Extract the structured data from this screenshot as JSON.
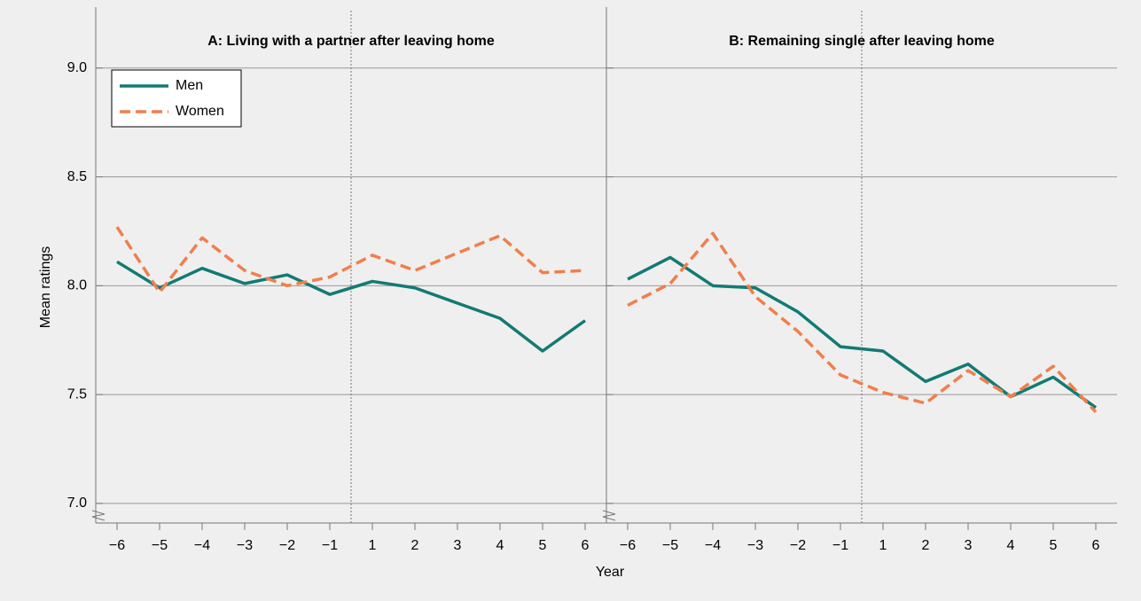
{
  "chart_data": [
    {
      "type": "line",
      "title": "A: Living with a partner after leaving home",
      "ylabel": "Mean ratings",
      "xlabel": "Year",
      "categories": [
        "−6",
        "−5",
        "−4",
        "−3",
        "−2",
        "−1",
        "1",
        "2",
        "3",
        "4",
        "5",
        "6"
      ],
      "series": [
        {
          "name": "Men",
          "color": "#127a73",
          "dash": false,
          "values": [
            8.11,
            7.99,
            8.08,
            8.01,
            8.05,
            7.96,
            8.02,
            7.99,
            7.92,
            7.85,
            7.7,
            7.84
          ]
        },
        {
          "name": "Women",
          "color": "#f07f4b",
          "dash": true,
          "values": [
            8.27,
            7.97,
            8.22,
            8.07,
            8.0,
            8.04,
            8.14,
            8.07,
            8.15,
            8.23,
            8.06,
            8.07
          ]
        }
      ],
      "ylim": [
        6.91,
        9.28
      ],
      "yticks": [
        {
          "value": 7,
          "label": "7.0"
        },
        7.5,
        {
          "value": 8,
          "label": "8.0"
        },
        8.5,
        {
          "value": 9,
          "label": "9.0"
        }
      ],
      "grid": true,
      "legend": "upper left"
    },
    {
      "type": "line",
      "title": "B: Remaining single after leaving home",
      "categories": [
        "−6",
        "−5",
        "−4",
        "−3",
        "−2",
        "−1",
        "1",
        "2",
        "3",
        "4",
        "5",
        "6"
      ],
      "series": [
        {
          "color": "#127a73",
          "dash": false,
          "values": [
            8.03,
            8.13,
            8.0,
            7.99,
            7.88,
            7.72,
            7.7,
            7.56,
            7.64,
            7.49,
            7.58,
            7.44
          ]
        },
        {
          "color": "#f07f4b",
          "dash": true,
          "values": [
            7.91,
            8.01,
            8.24,
            7.95,
            7.79,
            7.59,
            7.51,
            7.46,
            7.61,
            7.49,
            7.63,
            7.42
          ]
        }
      ],
      "ylim": [
        6.91,
        9.28
      ],
      "yticks": [
        7,
        7.5,
        8,
        8.5,
        9
      ],
      "grid": true
    }
  ]
}
